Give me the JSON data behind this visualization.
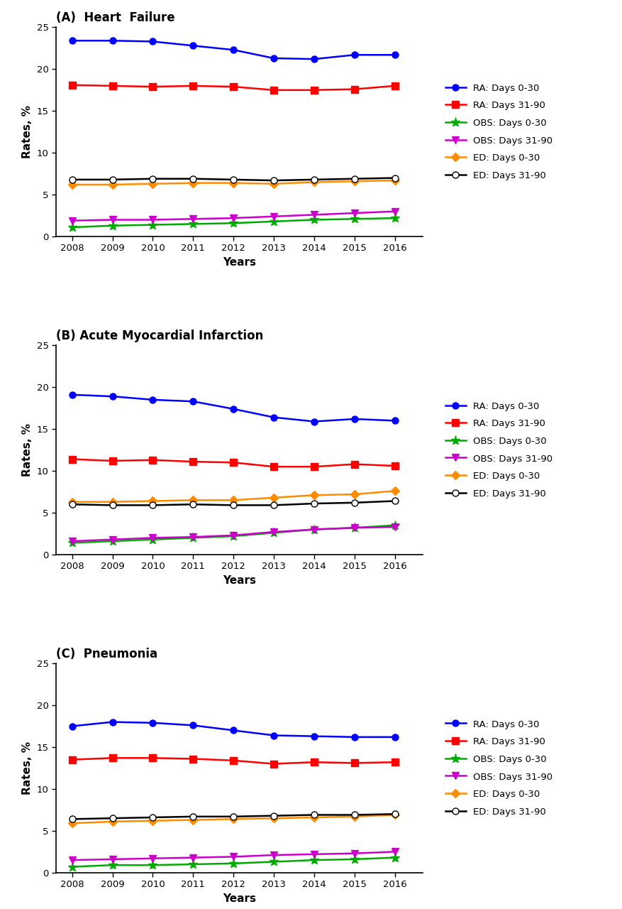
{
  "years": [
    2008,
    2009,
    2010,
    2011,
    2012,
    2013,
    2014,
    2015,
    2016
  ],
  "panels": [
    {
      "title": "(A)  Heart  Failure",
      "series": [
        {
          "label": "RA: Days 0-30",
          "color": "#0000FF",
          "marker": "o",
          "markerface": "#0000FF",
          "values": [
            23.4,
            23.4,
            23.3,
            22.8,
            22.3,
            21.3,
            21.2,
            21.7,
            21.7
          ]
        },
        {
          "label": "RA: Days 31-90",
          "color": "#FF0000",
          "marker": "s",
          "markerface": "#FF0000",
          "values": [
            18.1,
            18.0,
            17.9,
            18.0,
            17.9,
            17.5,
            17.5,
            17.6,
            18.0
          ]
        },
        {
          "label": "OBS: Days 0-30",
          "color": "#00AA00",
          "marker": "*",
          "markerface": "#00AA00",
          "values": [
            1.1,
            1.3,
            1.4,
            1.5,
            1.6,
            1.8,
            2.0,
            2.1,
            2.2
          ]
        },
        {
          "label": "OBS: Days 31-90",
          "color": "#CC00CC",
          "marker": "v",
          "markerface": "#CC00CC",
          "values": [
            1.9,
            2.0,
            2.0,
            2.1,
            2.2,
            2.4,
            2.6,
            2.8,
            3.0
          ]
        },
        {
          "label": "ED: Days 0-30",
          "color": "#FF8C00",
          "marker": "D",
          "markerface": "#FF8C00",
          "values": [
            6.2,
            6.2,
            6.3,
            6.4,
            6.4,
            6.3,
            6.5,
            6.6,
            6.7
          ]
        },
        {
          "label": "ED: Days 31-90",
          "color": "#000000",
          "marker": "o",
          "markerface": "#FFFFFF",
          "values": [
            6.8,
            6.8,
            6.9,
            6.9,
            6.8,
            6.7,
            6.8,
            6.9,
            7.0
          ]
        }
      ]
    },
    {
      "title": "(B) Acute Myocardial Infarction",
      "series": [
        {
          "label": "RA: Days 0-30",
          "color": "#0000FF",
          "marker": "o",
          "markerface": "#0000FF",
          "values": [
            19.1,
            18.9,
            18.5,
            18.3,
            17.4,
            16.4,
            15.9,
            16.2,
            16.0
          ]
        },
        {
          "label": "RA: Days 31-90",
          "color": "#FF0000",
          "marker": "s",
          "markerface": "#FF0000",
          "values": [
            11.4,
            11.2,
            11.3,
            11.1,
            11.0,
            10.5,
            10.5,
            10.8,
            10.6
          ]
        },
        {
          "label": "OBS: Days 0-30",
          "color": "#00AA00",
          "marker": "*",
          "markerface": "#00AA00",
          "values": [
            1.4,
            1.6,
            1.8,
            2.0,
            2.2,
            2.6,
            3.0,
            3.2,
            3.5
          ]
        },
        {
          "label": "OBS: Days 31-90",
          "color": "#CC00CC",
          "marker": "v",
          "markerface": "#CC00CC",
          "values": [
            1.6,
            1.8,
            2.0,
            2.1,
            2.3,
            2.7,
            3.0,
            3.2,
            3.3
          ]
        },
        {
          "label": "ED: Days 0-30",
          "color": "#FF8C00",
          "marker": "D",
          "markerface": "#FF8C00",
          "values": [
            6.3,
            6.3,
            6.4,
            6.5,
            6.5,
            6.8,
            7.1,
            7.2,
            7.6
          ]
        },
        {
          "label": "ED: Days 31-90",
          "color": "#000000",
          "marker": "o",
          "markerface": "#FFFFFF",
          "values": [
            6.0,
            5.9,
            5.9,
            6.0,
            5.9,
            5.9,
            6.1,
            6.2,
            6.4
          ]
        }
      ]
    },
    {
      "title": "(C)  Pneumonia",
      "series": [
        {
          "label": "RA: Days 0-30",
          "color": "#0000FF",
          "marker": "o",
          "markerface": "#0000FF",
          "values": [
            17.5,
            18.0,
            17.9,
            17.6,
            17.0,
            16.4,
            16.3,
            16.2,
            16.2
          ]
        },
        {
          "label": "RA: Days 31-90",
          "color": "#FF0000",
          "marker": "s",
          "markerface": "#FF0000",
          "values": [
            13.5,
            13.7,
            13.7,
            13.6,
            13.4,
            13.0,
            13.2,
            13.1,
            13.2
          ]
        },
        {
          "label": "OBS: Days 0-30",
          "color": "#00AA00",
          "marker": "*",
          "markerface": "#00AA00",
          "values": [
            0.7,
            0.9,
            0.9,
            1.0,
            1.1,
            1.3,
            1.5,
            1.6,
            1.8
          ]
        },
        {
          "label": "OBS: Days 31-90",
          "color": "#CC00CC",
          "marker": "v",
          "markerface": "#CC00CC",
          "values": [
            1.5,
            1.6,
            1.7,
            1.8,
            1.9,
            2.1,
            2.2,
            2.3,
            2.5
          ]
        },
        {
          "label": "ED: Days 0-30",
          "color": "#FF8C00",
          "marker": "D",
          "markerface": "#FF8C00",
          "values": [
            5.9,
            6.1,
            6.2,
            6.3,
            6.4,
            6.5,
            6.6,
            6.7,
            6.9
          ]
        },
        {
          "label": "ED: Days 31-90",
          "color": "#000000",
          "marker": "o",
          "markerface": "#FFFFFF",
          "values": [
            6.4,
            6.5,
            6.6,
            6.7,
            6.7,
            6.8,
            6.9,
            6.9,
            7.0
          ]
        }
      ]
    }
  ],
  "xlabel": "Years",
  "ylabel": "Rates, %",
  "ylim": [
    0,
    25
  ],
  "yticks": [
    0,
    5,
    10,
    15,
    20,
    25
  ],
  "background_color": "#FFFFFF",
  "linewidth": 1.8,
  "markersize": 6.5
}
